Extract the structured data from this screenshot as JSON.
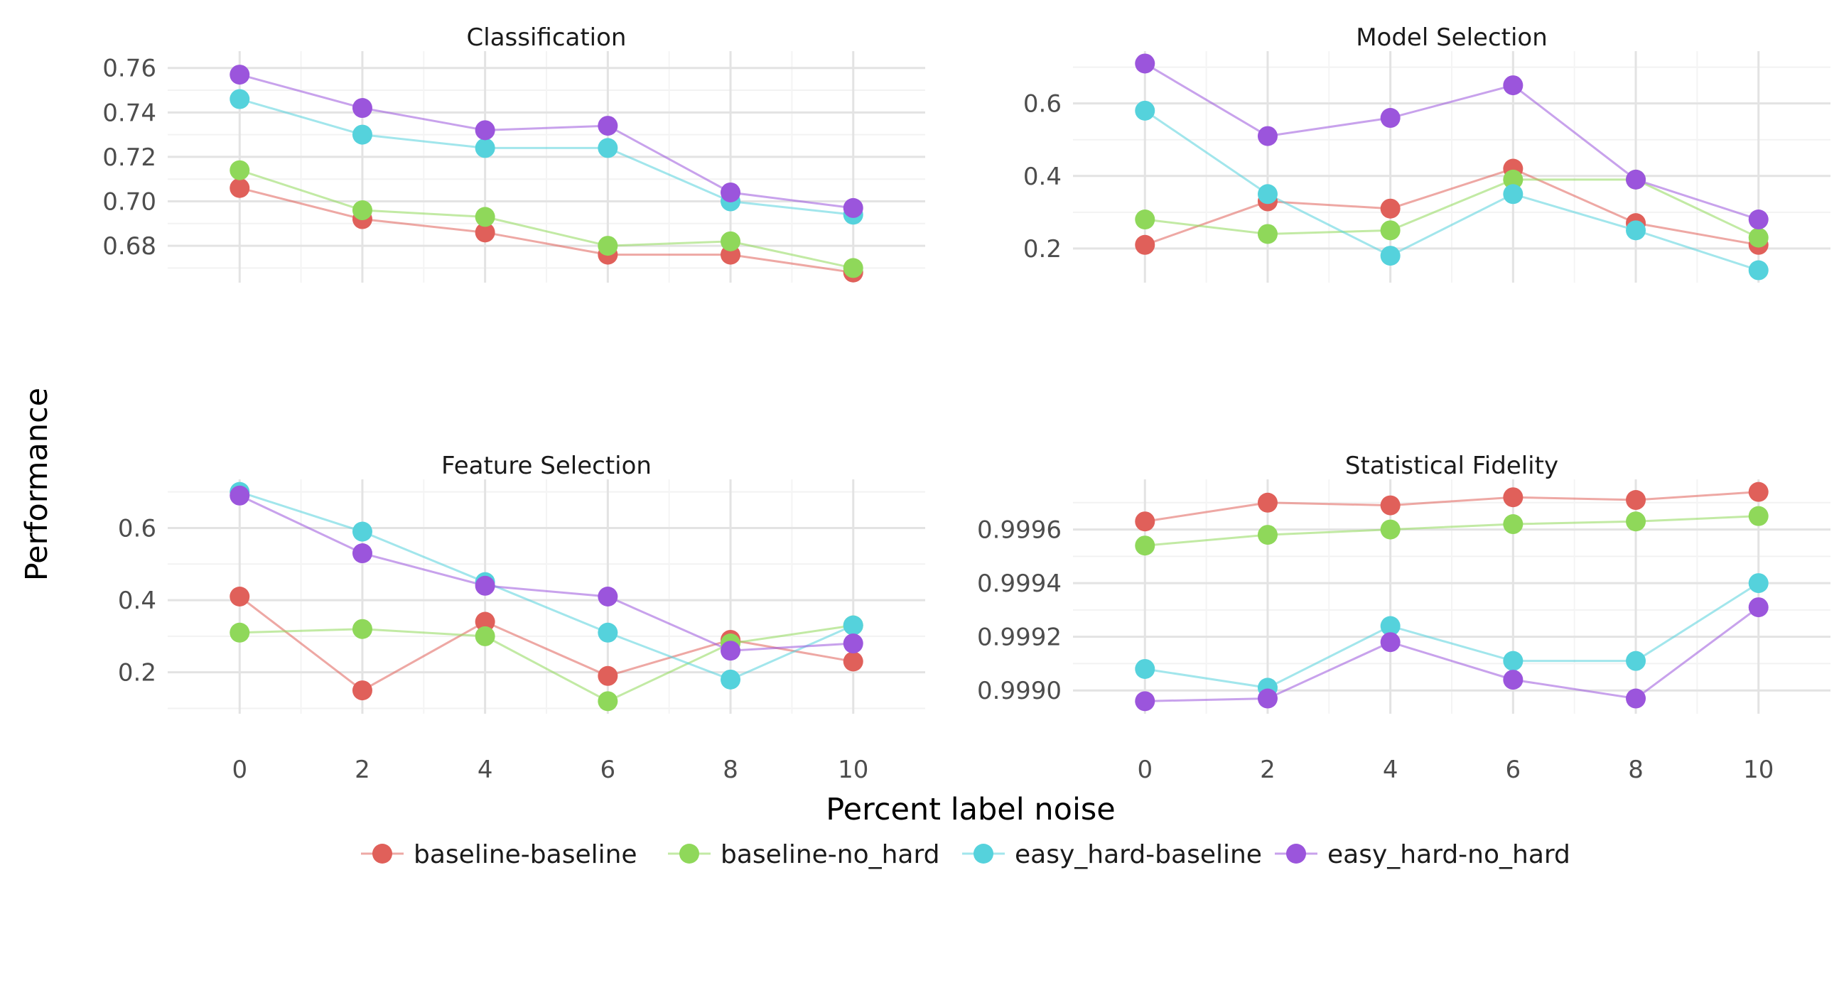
{
  "chart_data": {
    "type": "line",
    "xlabel": "Percent label noise",
    "ylabel": "Performance",
    "x": [
      0,
      2,
      4,
      6,
      8,
      10
    ],
    "x_ticks": [
      "0",
      "2",
      "4",
      "6",
      "8",
      "10"
    ],
    "grid": true,
    "legend_position": "bottom",
    "series_colors": {
      "baseline-baseline": "#e0605a",
      "baseline-no_hard": "#8fd85a",
      "easy_hard-baseline": "#55d2dc",
      "easy_hard-no_hard": "#9b55dc"
    },
    "legend": [
      "baseline-baseline",
      "baseline-no_hard",
      "easy_hard-baseline",
      "easy_hard-no_hard"
    ],
    "panels": [
      {
        "title": "Classification",
        "ylim": [
          0.669,
          0.762
        ],
        "y_ticks": [
          "0.68",
          "0.70",
          "0.72",
          "0.74",
          "0.76"
        ],
        "y_tick_values": [
          0.68,
          0.7,
          0.72,
          0.74,
          0.76
        ],
        "series": [
          {
            "name": "baseline-baseline",
            "values": [
              0.706,
              0.692,
              0.686,
              0.676,
              0.676,
              0.668
            ]
          },
          {
            "name": "baseline-no_hard",
            "values": [
              0.714,
              0.696,
              0.693,
              0.68,
              0.682,
              0.67
            ]
          },
          {
            "name": "easy_hard-baseline",
            "values": [
              0.746,
              0.73,
              0.724,
              0.724,
              0.7,
              0.694
            ]
          },
          {
            "name": "easy_hard-no_hard",
            "values": [
              0.757,
              0.742,
              0.732,
              0.734,
              0.704,
              0.697
            ]
          }
        ]
      },
      {
        "title": "Model Selection",
        "ylim": [
          0.14,
          0.71
        ],
        "y_ticks": [
          "0.2",
          "0.4",
          "0.6"
        ],
        "y_tick_values": [
          0.2,
          0.4,
          0.6
        ],
        "series": [
          {
            "name": "baseline-baseline",
            "values": [
              0.21,
              0.33,
              0.31,
              0.42,
              0.27,
              0.21
            ]
          },
          {
            "name": "baseline-no_hard",
            "values": [
              0.28,
              0.24,
              0.25,
              0.39,
              0.39,
              0.23
            ]
          },
          {
            "name": "easy_hard-baseline",
            "values": [
              0.58,
              0.35,
              0.18,
              0.35,
              0.25,
              0.14
            ]
          },
          {
            "name": "easy_hard-no_hard",
            "values": [
              0.71,
              0.51,
              0.56,
              0.65,
              0.39,
              0.28
            ]
          }
        ]
      },
      {
        "title": "Feature Selection",
        "ylim": [
          0.12,
          0.7
        ],
        "y_ticks": [
          "0.2",
          "0.4",
          "0.6"
        ],
        "y_tick_values": [
          0.2,
          0.4,
          0.6
        ],
        "series": [
          {
            "name": "baseline-baseline",
            "values": [
              0.41,
              0.15,
              0.34,
              0.19,
              0.29,
              0.23
            ]
          },
          {
            "name": "baseline-no_hard",
            "values": [
              0.31,
              0.32,
              0.3,
              0.12,
              0.28,
              0.33
            ]
          },
          {
            "name": "easy_hard-baseline",
            "values": [
              0.7,
              0.59,
              0.45,
              0.31,
              0.18,
              0.33
            ]
          },
          {
            "name": "easy_hard-no_hard",
            "values": [
              0.69,
              0.53,
              0.44,
              0.41,
              0.26,
              0.28
            ]
          }
        ]
      },
      {
        "title": "Statistical Fidelity",
        "ylim": [
          0.99896,
          0.99974
        ],
        "y_ticks": [
          "0.9990",
          "0.9992",
          "0.9994",
          "0.9996"
        ],
        "y_tick_values": [
          0.999,
          0.9992,
          0.9994,
          0.9996
        ],
        "series": [
          {
            "name": "baseline-baseline",
            "values": [
              0.99963,
              0.9997,
              0.99969,
              0.99972,
              0.99971,
              0.99974
            ]
          },
          {
            "name": "baseline-no_hard",
            "values": [
              0.99954,
              0.99958,
              0.9996,
              0.99962,
              0.99963,
              0.99965
            ]
          },
          {
            "name": "easy_hard-baseline",
            "values": [
              0.99908,
              0.99901,
              0.99924,
              0.99911,
              0.99911,
              0.9994
            ]
          },
          {
            "name": "easy_hard-no_hard",
            "values": [
              0.99896,
              0.99897,
              0.99918,
              0.99904,
              0.99897,
              0.99931
            ]
          }
        ]
      }
    ]
  }
}
